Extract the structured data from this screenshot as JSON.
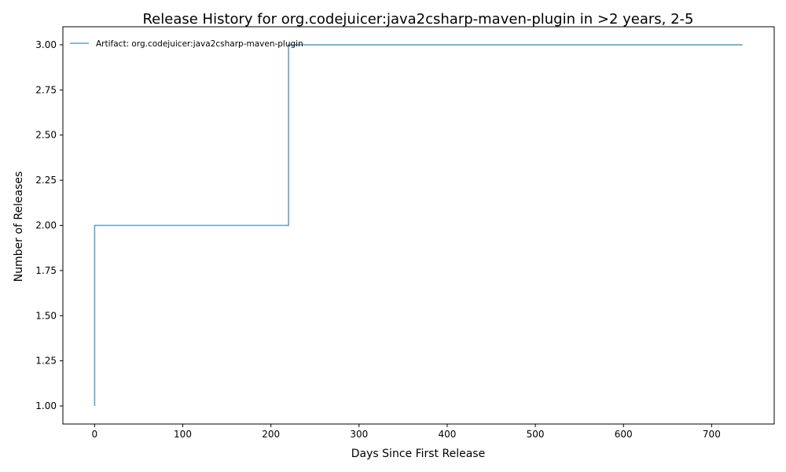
{
  "chart_data": {
    "type": "line",
    "title": "Release History for org.codejuicer:java2csharp-maven-plugin in >2 years, 2-5",
    "xlabel": "Days Since First Release",
    "ylabel": "Number of Releases",
    "xlim": [
      -36,
      771
    ],
    "ylim": [
      0.9,
      3.1
    ],
    "x_ticks": [
      0,
      100,
      200,
      300,
      400,
      500,
      600,
      700
    ],
    "y_ticks": [
      1.0,
      1.25,
      1.5,
      1.75,
      2.0,
      2.25,
      2.5,
      2.75,
      3.0
    ],
    "y_tick_labels": [
      "1.00",
      "1.25",
      "1.50",
      "1.75",
      "2.00",
      "2.25",
      "2.50",
      "2.75",
      "3.00"
    ],
    "grid": false,
    "legend_position": "top-left",
    "series": [
      {
        "name": "Artifact: org.codejuicer:java2csharp-maven-plugin",
        "color": "#1f77b4",
        "step": "post",
        "x": [
          0,
          0,
          220,
          735
        ],
        "y": [
          1,
          2,
          3,
          3
        ]
      }
    ]
  }
}
